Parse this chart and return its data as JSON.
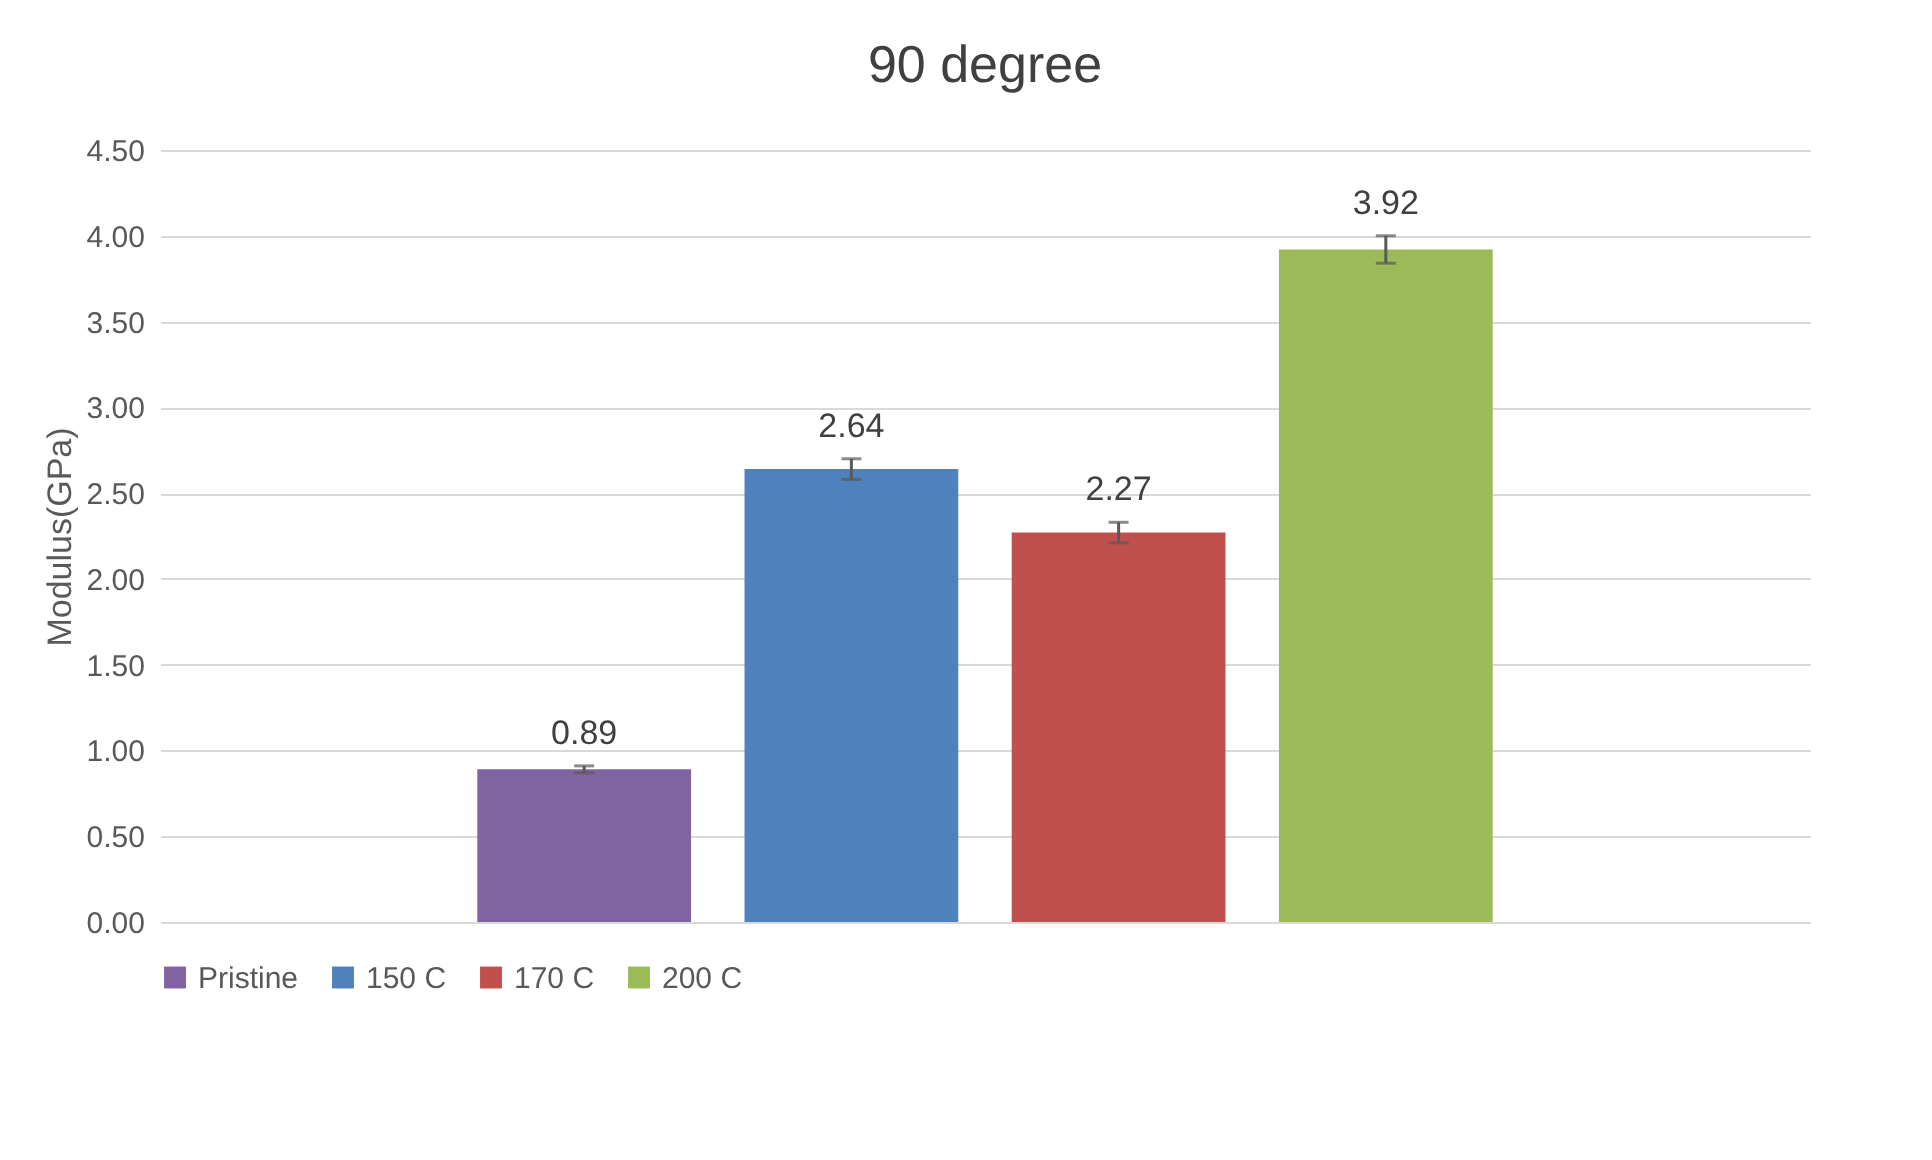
{
  "chart_data": {
    "type": "bar",
    "title": "90 degree",
    "ylabel": "Modulus(GPa)",
    "categories": [
      null
    ],
    "series": [
      {
        "name": "Pristine",
        "color": "#8064a2",
        "values": [
          0.89
        ],
        "errors": [
          0.02
        ]
      },
      {
        "name": "150 C",
        "color": "#4f81bd",
        "values": [
          2.64
        ],
        "errors": [
          0.06
        ]
      },
      {
        "name": "170 C",
        "color": "#c0504d",
        "values": [
          2.27
        ],
        "errors": [
          0.06
        ]
      },
      {
        "name": "200 C",
        "color": "#9bbb59",
        "values": [
          3.92
        ],
        "errors": [
          0.08
        ]
      }
    ],
    "ylim": [
      0,
      4.5
    ],
    "yticks": [
      {
        "value": 0,
        "label": "0.00"
      },
      {
        "value": 0.5,
        "label": "0.50"
      },
      {
        "value": 1,
        "label": "1.00"
      },
      {
        "value": 1.5,
        "label": "1.50"
      },
      {
        "value": 2,
        "label": "2.00"
      },
      {
        "value": 2.5,
        "label": "2.50"
      },
      {
        "value": 3,
        "label": "3.00"
      },
      {
        "value": 3.5,
        "label": "3.50"
      },
      {
        "value": 4,
        "label": "4.00"
      },
      {
        "value": 4.5,
        "label": "4.50"
      }
    ],
    "grid": "y",
    "legend": "bottom",
    "data_labels": true
  }
}
